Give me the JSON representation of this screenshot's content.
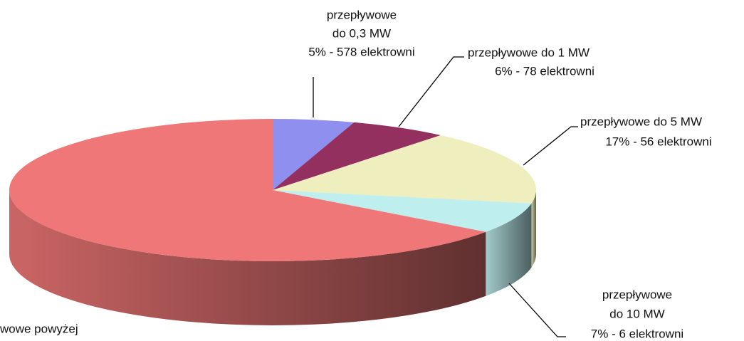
{
  "chart_data": {
    "type": "pie3d",
    "categories": [
      [
        "przepływowe",
        "do 0,3 MW"
      ],
      [
        "przepływowe do 1 MW"
      ],
      [
        "przepływowe do 5 MW"
      ],
      [
        "przepływowe",
        "do 10 MW"
      ],
      [
        "wowe powyżej"
      ]
    ],
    "values": [
      5,
      6,
      17,
      7,
      65
    ],
    "value_labels": [
      "5% - 578 elektrowni",
      "6% - 78 elektrowni",
      "17% - 56 elektrowni",
      "7% - 6 elektrowni",
      null
    ],
    "colors": [
      "#8f8fef",
      "#93305f",
      "#eeeebf",
      "#bfeeee",
      "#ef7777"
    ]
  }
}
